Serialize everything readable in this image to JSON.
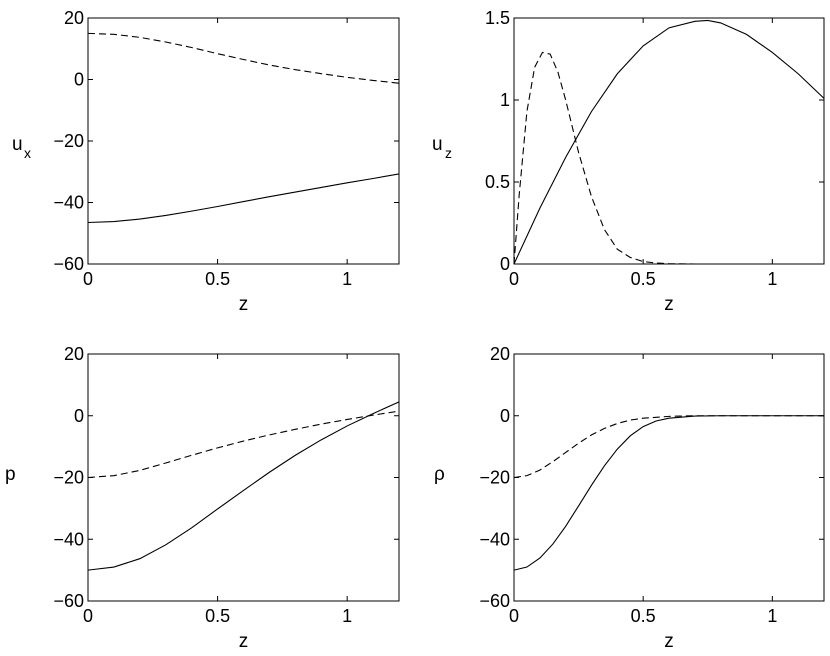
{
  "chart_data": [
    {
      "type": "line",
      "xlabel": "z",
      "ylabel": "u",
      "ylabel_sub": "x",
      "xlim": [
        0,
        1.2
      ],
      "ylim": [
        -60,
        20
      ],
      "xticks": [
        "0",
        "0.5",
        "1"
      ],
      "yticks": [
        "20",
        "0",
        "−20",
        "−40",
        "−60"
      ],
      "grid": false,
      "series": [
        {
          "style": "solid",
          "x": [
            0,
            0.1,
            0.2,
            0.3,
            0.4,
            0.5,
            0.6,
            0.7,
            0.8,
            0.9,
            1.0,
            1.1,
            1.2
          ],
          "y": [
            -46.5,
            -46.2,
            -45.4,
            -44.2,
            -42.8,
            -41.3,
            -39.7,
            -38.1,
            -36.6,
            -35.1,
            -33.6,
            -32.2,
            -30.7
          ]
        },
        {
          "style": "dashed",
          "x": [
            0,
            0.1,
            0.2,
            0.3,
            0.4,
            0.5,
            0.6,
            0.7,
            0.8,
            0.9,
            1.0,
            1.1,
            1.2
          ],
          "y": [
            15.0,
            14.7,
            13.7,
            12.2,
            10.4,
            8.4,
            6.5,
            4.7,
            3.2,
            1.9,
            0.7,
            -0.3,
            -1.2
          ]
        }
      ]
    },
    {
      "type": "line",
      "xlabel": "z",
      "ylabel": "u",
      "ylabel_sub": "z",
      "xlim": [
        0,
        1.2
      ],
      "ylim": [
        0,
        1.5
      ],
      "xticks": [
        "0",
        "0.5",
        "1"
      ],
      "yticks": [
        "1.5",
        "1",
        "0.5",
        "0"
      ],
      "grid": false,
      "series": [
        {
          "style": "solid",
          "x": [
            0,
            0.1,
            0.2,
            0.3,
            0.4,
            0.5,
            0.6,
            0.7,
            0.75,
            0.8,
            0.9,
            1.0,
            1.1,
            1.2
          ],
          "y": [
            0,
            0.34,
            0.65,
            0.93,
            1.16,
            1.33,
            1.44,
            1.48,
            1.485,
            1.47,
            1.4,
            1.29,
            1.16,
            1.01
          ]
        },
        {
          "style": "dashed",
          "x": [
            0,
            0.02,
            0.05,
            0.08,
            0.11,
            0.14,
            0.17,
            0.2,
            0.25,
            0.3,
            0.35,
            0.4,
            0.45,
            0.5,
            0.55,
            0.6,
            0.7,
            0.8,
            1.0,
            1.2
          ],
          "y": [
            0,
            0.42,
            0.93,
            1.2,
            1.29,
            1.28,
            1.17,
            1.0,
            0.68,
            0.41,
            0.21,
            0.09,
            0.04,
            0.015,
            0.006,
            0.002,
            0,
            0,
            0,
            0
          ]
        }
      ]
    },
    {
      "type": "line",
      "xlabel": "z",
      "ylabel": "p",
      "ylabel_sub": "",
      "xlim": [
        0,
        1.2
      ],
      "ylim": [
        -60,
        20
      ],
      "xticks": [
        "0",
        "0.5",
        "1"
      ],
      "yticks": [
        "20",
        "0",
        "−20",
        "−40",
        "−60"
      ],
      "grid": false,
      "series": [
        {
          "style": "solid",
          "x": [
            0,
            0.1,
            0.2,
            0.3,
            0.4,
            0.5,
            0.6,
            0.7,
            0.8,
            0.9,
            1.0,
            1.1,
            1.2
          ],
          "y": [
            -50,
            -49,
            -46.3,
            -41.8,
            -36.3,
            -30.2,
            -24.2,
            -18.3,
            -12.8,
            -7.8,
            -3.3,
            0.7,
            4.5
          ]
        },
        {
          "style": "dashed",
          "x": [
            0,
            0.1,
            0.2,
            0.3,
            0.4,
            0.5,
            0.6,
            0.7,
            0.8,
            0.9,
            1.0,
            1.1,
            1.2
          ],
          "y": [
            -20,
            -19.4,
            -17.7,
            -15.3,
            -12.8,
            -10.4,
            -8.2,
            -6.2,
            -4.4,
            -2.7,
            -1.2,
            0.2,
            1.5
          ]
        }
      ]
    },
    {
      "type": "line",
      "xlabel": "z",
      "ylabel": "ρ",
      "ylabel_sub": "",
      "xlim": [
        0,
        1.2
      ],
      "ylim": [
        -60,
        20
      ],
      "xticks": [
        "0",
        "0.5",
        "1"
      ],
      "yticks": [
        "20",
        "0",
        "−20",
        "−40",
        "−60"
      ],
      "grid": false,
      "series": [
        {
          "style": "solid",
          "x": [
            0,
            0.05,
            0.1,
            0.15,
            0.2,
            0.25,
            0.3,
            0.35,
            0.4,
            0.45,
            0.5,
            0.55,
            0.6,
            0.7,
            0.8,
            0.9,
            1.0,
            1.2
          ],
          "y": [
            -50,
            -49.0,
            -46.1,
            -41.6,
            -35.8,
            -29.2,
            -22.5,
            -16.2,
            -10.8,
            -6.5,
            -3.5,
            -1.7,
            -0.8,
            -0.1,
            0,
            0,
            0,
            0
          ]
        },
        {
          "style": "dashed",
          "x": [
            0,
            0.05,
            0.1,
            0.15,
            0.2,
            0.25,
            0.3,
            0.35,
            0.4,
            0.45,
            0.5,
            0.6,
            0.7,
            0.8,
            1.0,
            1.2
          ],
          "y": [
            -20,
            -19.4,
            -17.6,
            -14.9,
            -11.9,
            -8.9,
            -6.2,
            -4.1,
            -2.5,
            -1.4,
            -0.8,
            -0.2,
            0,
            0,
            0,
            0
          ]
        }
      ]
    }
  ]
}
